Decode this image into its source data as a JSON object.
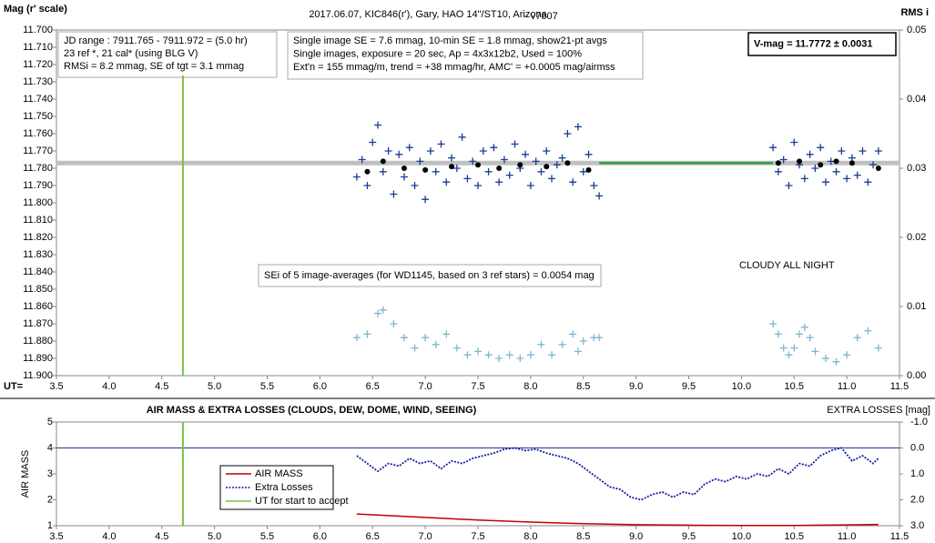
{
  "chart_data": [
    {
      "type": "scatter",
      "title": "2017.06.07,  KIC846(r'),  Gary,  HAO  14\"/ST10,  Arizona",
      "subtitle": "- v7607",
      "y_label": "Mag (r' scale)",
      "y2_label": "RMS i",
      "x_label": "UT=",
      "xlim": [
        3.5,
        11.5
      ],
      "xticks": [
        3.5,
        {
          "value": 4,
          "label": "4.0"
        },
        4.5,
        {
          "value": 5,
          "label": "5.0"
        },
        5.5,
        {
          "value": 6,
          "label": "6.0"
        },
        6.5,
        {
          "value": 7,
          "label": "7.0"
        },
        7.5,
        {
          "value": 8,
          "label": "8.0"
        },
        8.5,
        {
          "value": 9,
          "label": "9.0"
        },
        9.5,
        {
          "value": 10,
          "label": "10.0"
        },
        10.5,
        {
          "value": 11,
          "label": "11.0"
        },
        11.5
      ],
      "ylim": [
        11.9,
        11.7
      ],
      "yticks": [
        {
          "value": 11.7,
          "label": "11.700"
        },
        {
          "value": 11.71,
          "label": "11.710"
        },
        {
          "value": 11.72,
          "label": "11.720"
        },
        {
          "value": 11.73,
          "label": "11.730"
        },
        {
          "value": 11.74,
          "label": "11.740"
        },
        {
          "value": 11.75,
          "label": "11.750"
        },
        {
          "value": 11.76,
          "label": "11.760"
        },
        {
          "value": 11.77,
          "label": "11.770"
        },
        {
          "value": 11.78,
          "label": "11.780"
        },
        {
          "value": 11.79,
          "label": "11.790"
        },
        {
          "value": 11.8,
          "label": "11.800"
        },
        {
          "value": 11.81,
          "label": "11.810"
        },
        {
          "value": 11.82,
          "label": "11.820"
        },
        {
          "value": 11.83,
          "label": "11.830"
        },
        {
          "value": 11.84,
          "label": "11.840"
        },
        {
          "value": 11.85,
          "label": "11.850"
        },
        {
          "value": 11.86,
          "label": "11.860"
        },
        {
          "value": 11.87,
          "label": "11.870"
        },
        {
          "value": 11.88,
          "label": "11.880"
        },
        {
          "value": 11.89,
          "label": "11.890"
        },
        {
          "value": 11.9,
          "label": "11.900"
        }
      ],
      "y2lim": [
        0,
        0.05
      ],
      "y2ticks": [
        {
          "value": 0,
          "label": "0.00"
        },
        0.01,
        0.02,
        0.03,
        0.04,
        0.05
      ],
      "annotations": [
        {
          "lines": [
            "JD range : 7911.765 - 7911.972 = (5.0 hr)",
            "23 ref *, 21 cal* (using BLG V)",
            "RMSi = 8.2 mmag, SE of tgt = 3.1 mmag"
          ]
        },
        {
          "lines": [
            "Single image SE = 7.6 mmag, 10-min SE = 1.8 mmag, show21-pt avgs",
            "Single images, exposure = 20 sec, Ap = 4x3x12b2, Used = 100%",
            "Ext'n = 155 mmag/m, trend = +38 mmag/hr, AMC' = +0.0005 mag/airmss"
          ]
        },
        {
          "lines": [
            "V-mag = 11.7772 ± 0.0031"
          ]
        },
        {
          "lines": [
            "SEi of 5 image-averages (for WD1145, based on 3 ref stars) = 0.0054 mag"
          ]
        },
        {
          "lines": [
            "CLOUDY ALL NIGHT"
          ]
        }
      ],
      "series": [
        {
          "style": "hline",
          "color": "#c0c0c0",
          "values": [
            11.777
          ]
        },
        {
          "style": "line",
          "color": "#2e9e4a",
          "x": [
            8.65,
            10.3
          ],
          "values": [
            11.777,
            11.777
          ]
        },
        {
          "style": "plus",
          "color": "#1a3a96",
          "x": [
            6.35,
            6.4,
            6.45,
            6.5,
            6.55,
            6.6,
            6.65,
            6.7,
            6.75,
            6.8,
            6.85,
            6.9,
            6.95,
            7.0,
            7.05,
            7.1,
            7.15,
            7.2,
            7.25,
            7.3,
            7.35,
            7.4,
            7.45,
            7.5,
            7.55,
            7.6,
            7.65,
            7.7,
            7.75,
            7.8,
            7.85,
            7.9,
            7.95,
            8.0,
            8.05,
            8.1,
            8.15,
            8.2,
            8.25,
            8.3,
            8.35,
            8.4,
            8.45,
            8.5,
            8.55,
            8.6,
            8.65,
            10.3,
            10.35,
            10.4,
            10.45,
            10.5,
            10.55,
            10.6,
            10.65,
            10.7,
            10.75,
            10.8,
            10.85,
            10.9,
            10.95,
            11.0,
            11.05,
            11.1,
            11.15,
            11.2,
            11.25,
            11.3
          ],
          "values": [
            11.785,
            11.775,
            11.79,
            11.765,
            11.755,
            11.782,
            11.77,
            11.795,
            11.772,
            11.785,
            11.768,
            11.79,
            11.776,
            11.798,
            11.77,
            11.782,
            11.766,
            11.788,
            11.774,
            11.78,
            11.762,
            11.786,
            11.776,
            11.79,
            11.77,
            11.782,
            11.768,
            11.788,
            11.775,
            11.784,
            11.766,
            11.78,
            11.772,
            11.79,
            11.776,
            11.782,
            11.77,
            11.786,
            11.778,
            11.774,
            11.76,
            11.788,
            11.756,
            11.782,
            11.772,
            11.79,
            11.796,
            11.768,
            11.782,
            11.775,
            11.79,
            11.765,
            11.778,
            11.786,
            11.772,
            11.78,
            11.768,
            11.788,
            11.776,
            11.782,
            11.77,
            11.786,
            11.774,
            11.784,
            11.77,
            11.788,
            11.778,
            11.77
          ]
        },
        {
          "style": "dot",
          "color": "#000000",
          "x": [
            6.45,
            6.6,
            6.8,
            7.0,
            7.25,
            7.5,
            7.7,
            7.9,
            8.15,
            8.35,
            8.55,
            10.35,
            10.55,
            10.75,
            10.9,
            11.05,
            11.3
          ],
          "values": [
            11.782,
            11.776,
            11.78,
            11.781,
            11.779,
            11.778,
            11.78,
            11.778,
            11.779,
            11.777,
            11.781,
            11.777,
            11.776,
            11.778,
            11.776,
            11.777,
            11.78
          ]
        },
        {
          "style": "plus",
          "color": "#7fb6cc",
          "axis": "y2",
          "x": [
            6.35,
            6.45,
            6.55,
            6.6,
            6.7,
            6.8,
            6.9,
            7.0,
            7.1,
            7.2,
            7.3,
            7.4,
            7.5,
            7.6,
            7.7,
            7.8,
            7.9,
            8.0,
            8.1,
            8.2,
            8.3,
            8.4,
            8.45,
            8.5,
            8.6,
            8.65,
            10.3,
            10.35,
            10.4,
            10.45,
            10.5,
            10.55,
            10.6,
            10.65,
            10.7,
            10.8,
            10.9,
            11.0,
            11.1,
            11.2,
            11.3
          ],
          "values": [
            0.0055,
            0.006,
            0.009,
            0.0095,
            0.0075,
            0.0055,
            0.004,
            0.0055,
            0.0045,
            0.006,
            0.004,
            0.003,
            0.0035,
            0.003,
            0.0025,
            0.003,
            0.0025,
            0.003,
            0.0045,
            0.003,
            0.0045,
            0.006,
            0.0035,
            0.005,
            0.0055,
            0.0055,
            0.0075,
            0.006,
            0.004,
            0.003,
            0.004,
            0.006,
            0.007,
            0.0055,
            0.0035,
            0.0025,
            0.002,
            0.003,
            0.0055,
            0.0065,
            0.004
          ]
        },
        {
          "style": "vline",
          "color": "#7ac143",
          "x": [
            4.7
          ]
        }
      ]
    },
    {
      "type": "line",
      "title": "AIR MASS & EXTRA LOSSES (CLOUDS, DEW, DOME, WIND, SEEING)",
      "y_label": "AIR MASS",
      "y2_label": "EXTRA LOSSES [mag]",
      "xlim": [
        3.5,
        11.5
      ],
      "xticks": [
        3.5,
        {
          "value": 4,
          "label": "4.0"
        },
        4.5,
        {
          "value": 5,
          "label": "5.0"
        },
        5.5,
        {
          "value": 6,
          "label": "6.0"
        },
        6.5,
        {
          "value": 7,
          "label": "7.0"
        },
        7.5,
        {
          "value": 8,
          "label": "8.0"
        },
        8.5,
        {
          "value": 9,
          "label": "9.0"
        },
        9.5,
        {
          "value": 10,
          "label": "10.0"
        },
        10.5,
        {
          "value": 11,
          "label": "11.0"
        },
        11.5
      ],
      "ylim": [
        1,
        5
      ],
      "yticks": [
        1,
        2,
        3,
        4,
        5
      ],
      "y2lim": [
        3,
        -1
      ],
      "y2ticks": [
        {
          "value": -1,
          "label": "-1.0"
        },
        {
          "value": 0,
          "label": "0.0"
        },
        {
          "value": 1,
          "label": "1.0"
        },
        {
          "value": 2,
          "label": "2.0"
        },
        {
          "value": 3,
          "label": "3.0"
        }
      ],
      "legend": "left",
      "series": [
        {
          "style": "hline",
          "color": "#1f3b8c",
          "axis": "y2",
          "values": [
            0
          ]
        },
        {
          "name": "AIR MASS",
          "style": "line",
          "color": "#c00000",
          "x": [
            6.35,
            7.0,
            7.5,
            8.0,
            8.5,
            9.0,
            9.5,
            10.0,
            10.5,
            11.0,
            11.3
          ],
          "values": [
            1.45,
            1.32,
            1.22,
            1.14,
            1.08,
            1.04,
            1.02,
            1.01,
            1.01,
            1.03,
            1.05
          ]
        },
        {
          "name": "Extra Losses",
          "style": "dashed",
          "color": "#1a1aa6",
          "axis": "y2",
          "x": [
            6.35,
            6.45,
            6.55,
            6.65,
            6.75,
            6.85,
            6.95,
            7.05,
            7.15,
            7.25,
            7.35,
            7.45,
            7.55,
            7.65,
            7.75,
            7.85,
            7.95,
            8.05,
            8.15,
            8.25,
            8.35,
            8.45,
            8.55,
            8.65,
            8.75,
            8.85,
            8.95,
            9.05,
            9.15,
            9.25,
            9.35,
            9.45,
            9.55,
            9.65,
            9.75,
            9.85,
            9.95,
            10.05,
            10.15,
            10.25,
            10.35,
            10.45,
            10.55,
            10.65,
            10.75,
            10.85,
            10.95,
            11.05,
            11.15,
            11.25,
            11.3
          ],
          "values": [
            0.3,
            0.6,
            0.9,
            0.6,
            0.7,
            0.4,
            0.6,
            0.5,
            0.8,
            0.5,
            0.6,
            0.4,
            0.3,
            0.2,
            0.05,
            0,
            0.1,
            0.05,
            0.2,
            0.3,
            0.4,
            0.6,
            0.9,
            1.2,
            1.5,
            1.6,
            1.9,
            2,
            1.8,
            1.7,
            1.9,
            1.7,
            1.8,
            1.4,
            1.2,
            1.3,
            1.1,
            1.2,
            1,
            1.1,
            0.8,
            1,
            0.6,
            0.7,
            0.3,
            0.1,
            0,
            0.5,
            0.3,
            0.6,
            0.4
          ]
        },
        {
          "name": "UT for start to accept",
          "style": "vline",
          "color": "#7ac143",
          "x": [
            4.7
          ]
        }
      ]
    }
  ]
}
